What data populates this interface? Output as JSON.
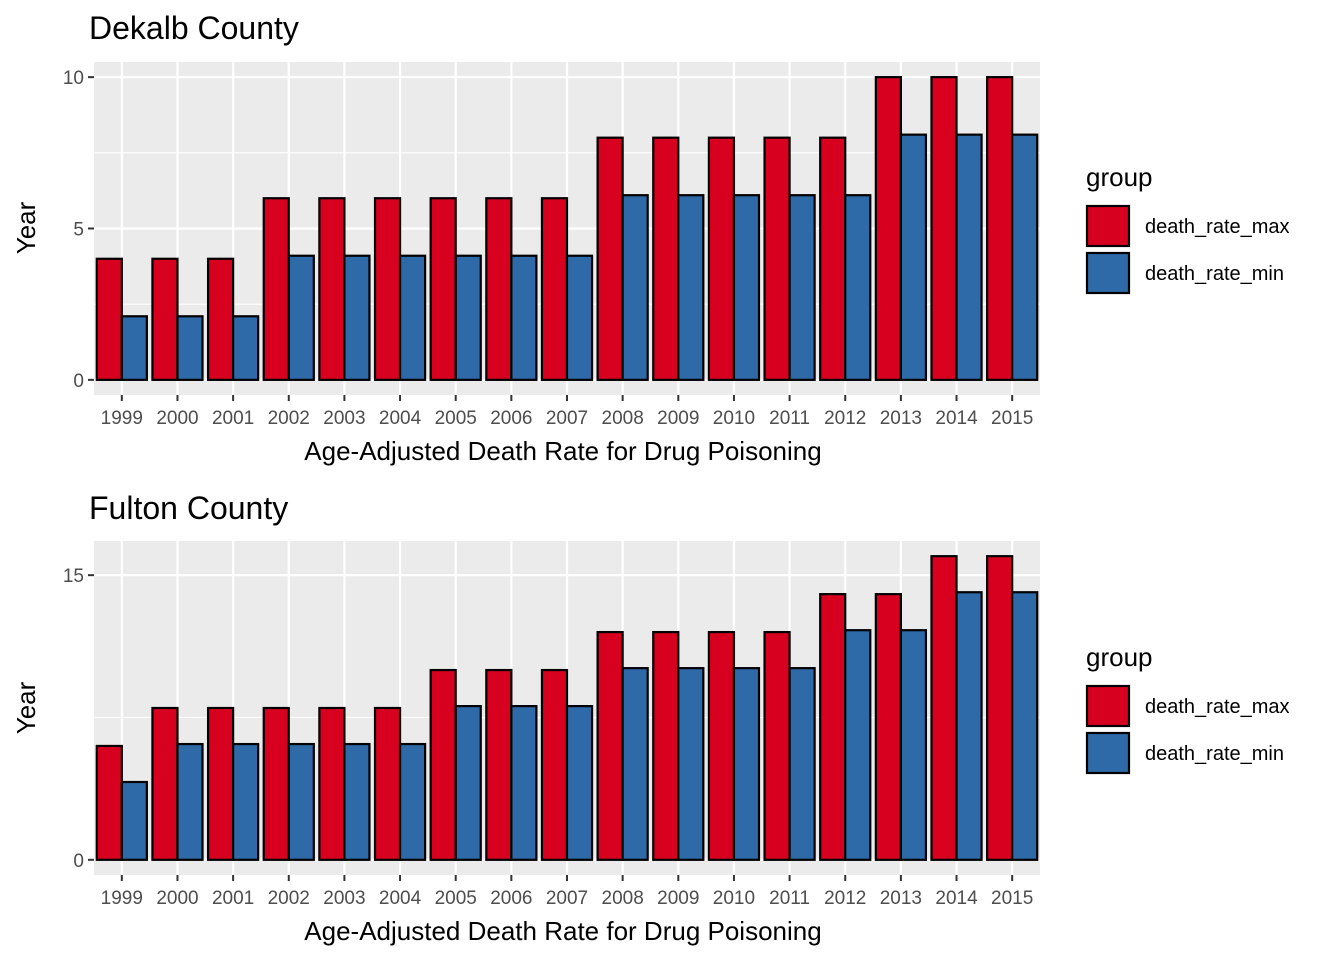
{
  "colors": {
    "death_rate_max": "#d7001f",
    "death_rate_min": "#2f6aa8"
  },
  "chart_data": [
    {
      "type": "bar",
      "title": "Dekalb County",
      "xlabel": "Age-Adjusted Death Rate for Drug Poisoning",
      "ylabel": "Year",
      "categories": [
        "1999",
        "2000",
        "2001",
        "2002",
        "2003",
        "2004",
        "2005",
        "2006",
        "2007",
        "2008",
        "2009",
        "2010",
        "2011",
        "2012",
        "2013",
        "2014",
        "2015"
      ],
      "series": [
        {
          "name": "death_rate_max",
          "values": [
            4,
            4,
            4,
            6,
            6,
            6,
            6,
            6,
            6,
            8,
            8,
            8,
            8,
            8,
            10,
            10,
            10
          ]
        },
        {
          "name": "death_rate_min",
          "values": [
            2.1,
            2.1,
            2.1,
            4.1,
            4.1,
            4.1,
            4.1,
            4.1,
            4.1,
            6.1,
            6.1,
            6.1,
            6.1,
            6.1,
            8.1,
            8.1,
            8.1
          ]
        }
      ],
      "ylim": [
        -0.5,
        10.5
      ],
      "yticks": [
        0,
        5,
        10
      ],
      "ytick_labels": [
        "0",
        "5",
        "10"
      ],
      "grid": true,
      "legend": {
        "title": "group",
        "entries": [
          "death_rate_max",
          "death_rate_min"
        ],
        "position": "right"
      }
    },
    {
      "type": "bar",
      "title": "Fulton County",
      "xlabel": "Age-Adjusted Death Rate for Drug Poisoning",
      "ylabel": "Year",
      "categories": [
        "1999",
        "2000",
        "2001",
        "2002",
        "2003",
        "2004",
        "2005",
        "2006",
        "2007",
        "2008",
        "2009",
        "2010",
        "2011",
        "2012",
        "2013",
        "2014",
        "2015"
      ],
      "series": [
        {
          "name": "death_rate_max",
          "values": [
            6,
            8,
            8,
            8,
            8,
            8,
            10,
            10,
            10,
            12,
            12,
            12,
            12,
            14,
            14,
            16,
            16
          ]
        },
        {
          "name": "death_rate_min",
          "values": [
            4.1,
            6.1,
            6.1,
            6.1,
            6.1,
            6.1,
            8.1,
            8.1,
            8.1,
            10.1,
            10.1,
            10.1,
            10.1,
            12.1,
            12.1,
            14.1,
            14.1
          ]
        }
      ],
      "ylim": [
        -0.8,
        16.8
      ],
      "yticks": [
        0,
        15
      ],
      "ytick_labels": [
        "0",
        "15"
      ],
      "grid": true,
      "legend": {
        "title": "group",
        "entries": [
          "death_rate_max",
          "death_rate_min"
        ],
        "position": "right"
      }
    }
  ]
}
